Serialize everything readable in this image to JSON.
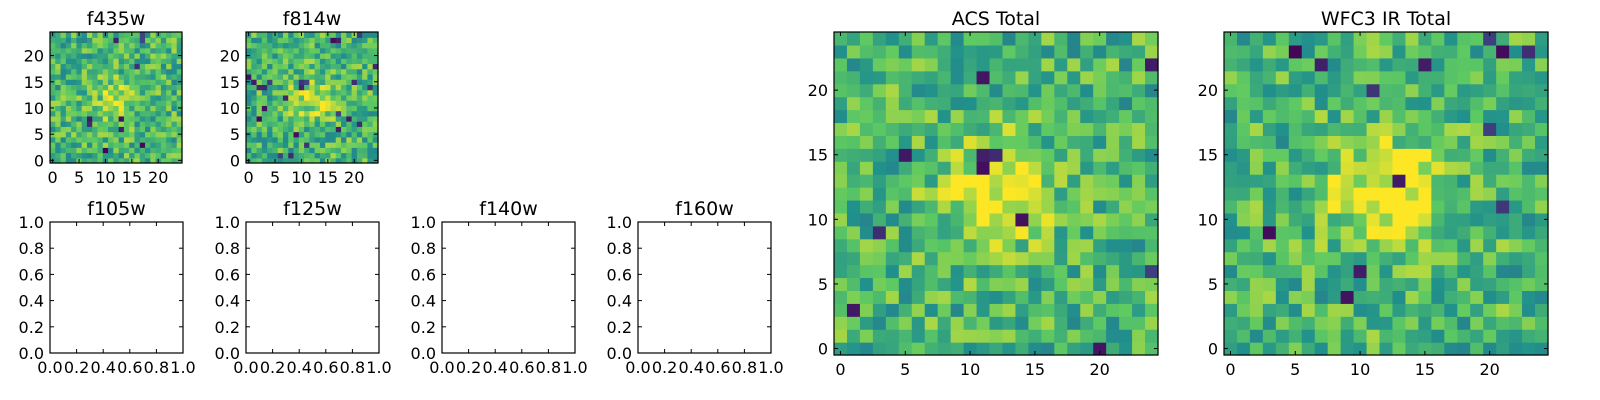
{
  "colormap": [
    "#440154",
    "#3b528b",
    "#21918c",
    "#5ec962",
    "#fde725"
  ],
  "chart_data": [
    {
      "type": "heatmap",
      "title": "f435w",
      "xticks": [
        "0",
        "5",
        "10",
        "15",
        "20"
      ],
      "yticks": [
        "0",
        "5",
        "10",
        "15",
        "20"
      ],
      "xlim": [
        -0.5,
        24.5
      ],
      "ylim": [
        -0.5,
        24.5
      ],
      "grid": [
        25,
        25
      ],
      "seed": 11,
      "blob": 0.2,
      "darkRate": 0.025,
      "colormap": "viridis"
    },
    {
      "type": "heatmap",
      "title": "f814w",
      "xticks": [
        "0",
        "5",
        "10",
        "15",
        "20"
      ],
      "yticks": [
        "0",
        "5",
        "10",
        "15",
        "20"
      ],
      "xlim": [
        -0.5,
        24.5
      ],
      "ylim": [
        -0.5,
        24.5
      ],
      "grid": [
        25,
        25
      ],
      "seed": 23,
      "blob": 0.25,
      "darkRate": 0.03,
      "colormap": "viridis"
    },
    {
      "type": "empty",
      "title": "f105w",
      "xticks": [
        "0.0",
        "0.2",
        "0.4",
        "0.6",
        "0.8",
        "1.0"
      ],
      "yticks": [
        "0.0",
        "0.2",
        "0.4",
        "0.6",
        "0.8",
        "1.0"
      ],
      "xlim": [
        0,
        1
      ],
      "ylim": [
        0,
        1
      ]
    },
    {
      "type": "empty",
      "title": "f125w",
      "xticks": [
        "0.0",
        "0.2",
        "0.4",
        "0.6",
        "0.8",
        "1.0"
      ],
      "yticks": [
        "0.0",
        "0.2",
        "0.4",
        "0.6",
        "0.8",
        "1.0"
      ],
      "xlim": [
        0,
        1
      ],
      "ylim": [
        0,
        1
      ]
    },
    {
      "type": "empty",
      "title": "f140w",
      "xticks": [
        "0.0",
        "0.2",
        "0.4",
        "0.6",
        "0.8",
        "1.0"
      ],
      "yticks": [
        "0.0",
        "0.2",
        "0.4",
        "0.6",
        "0.8",
        "1.0"
      ],
      "xlim": [
        0,
        1
      ],
      "ylim": [
        0,
        1
      ]
    },
    {
      "type": "empty",
      "title": "f160w",
      "xticks": [
        "0.0",
        "0.2",
        "0.4",
        "0.6",
        "0.8",
        "1.0"
      ],
      "yticks": [
        "0.0",
        "0.2",
        "0.4",
        "0.6",
        "0.8",
        "1.0"
      ],
      "xlim": [
        0,
        1
      ],
      "ylim": [
        0,
        1
      ]
    },
    {
      "type": "heatmap",
      "title": "ACS Total",
      "xticks": [
        "0",
        "5",
        "10",
        "15",
        "20"
      ],
      "yticks": [
        "0",
        "5",
        "10",
        "15",
        "20"
      ],
      "xlim": [
        -0.5,
        24.5
      ],
      "ylim": [
        -0.5,
        24.5
      ],
      "grid": [
        25,
        25
      ],
      "seed": 37,
      "blob": 0.35,
      "darkRate": 0.02,
      "colormap": "viridis"
    },
    {
      "type": "heatmap",
      "title": "WFC3 IR Total",
      "xticks": [
        "0",
        "5",
        "10",
        "15",
        "20"
      ],
      "yticks": [
        "0",
        "5",
        "10",
        "15",
        "20"
      ],
      "xlim": [
        -0.5,
        24.5
      ],
      "ylim": [
        -0.5,
        24.5
      ],
      "grid": [
        25,
        25
      ],
      "seed": 53,
      "blob": 0.4,
      "darkRate": 0.022,
      "colormap": "viridis"
    }
  ]
}
